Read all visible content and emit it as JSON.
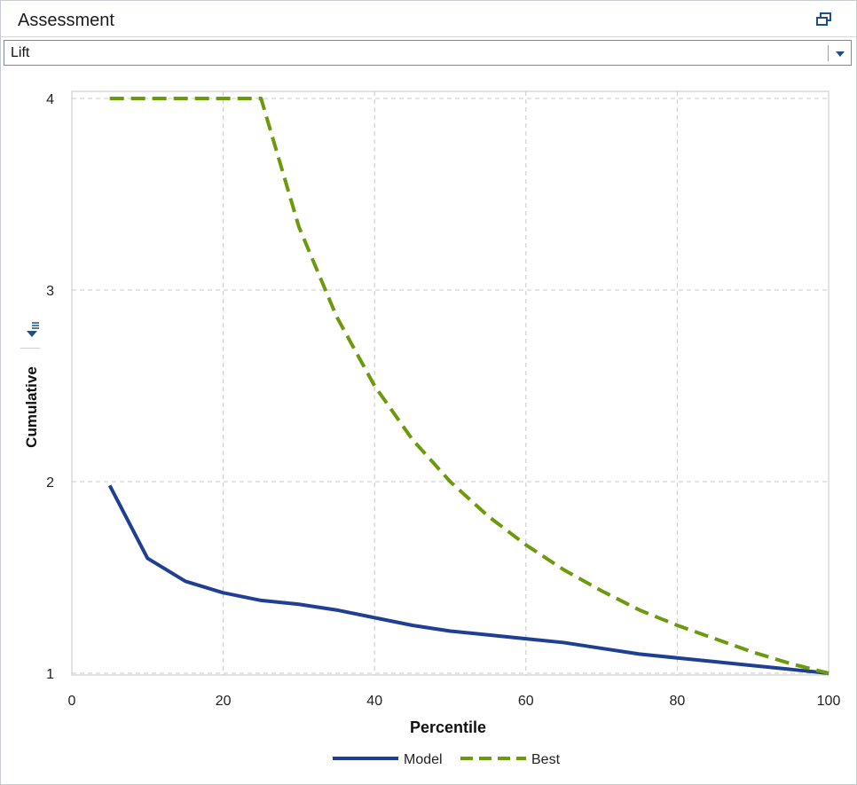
{
  "panel": {
    "title": "Assessment",
    "restore_icon": "restore-window-icon"
  },
  "dropdown": {
    "selected": "Lift",
    "arrow_icon": "chevron-down-icon"
  },
  "filter_icon": "filter-menu-icon",
  "colors": {
    "model": "#1f3f94",
    "best": "#6b9a0c",
    "grid": "#c8c8c8",
    "accent": "#1e4f8c"
  },
  "chart_data": {
    "type": "line",
    "xlabel": "Percentile",
    "ylabel": "Cumulative",
    "xlim": [
      0,
      100
    ],
    "ylim": [
      1,
      4
    ],
    "xticks": [
      0,
      20,
      40,
      60,
      80,
      100
    ],
    "yticks": [
      1,
      2,
      3,
      4
    ],
    "grid": true,
    "legend_position": "bottom-center",
    "series": [
      {
        "name": "Model",
        "style": "solid",
        "x": [
          5,
          10,
          15,
          20,
          25,
          30,
          35,
          40,
          45,
          50,
          55,
          60,
          65,
          70,
          75,
          80,
          85,
          90,
          95,
          100
        ],
        "y": [
          1.98,
          1.6,
          1.48,
          1.42,
          1.38,
          1.36,
          1.33,
          1.29,
          1.25,
          1.22,
          1.2,
          1.18,
          1.16,
          1.13,
          1.1,
          1.08,
          1.06,
          1.04,
          1.02,
          1.0
        ]
      },
      {
        "name": "Best",
        "style": "dashed",
        "x": [
          5,
          10,
          15,
          20,
          25,
          30,
          35,
          40,
          45,
          50,
          55,
          60,
          65,
          70,
          75,
          80,
          85,
          90,
          95,
          100
        ],
        "y": [
          4,
          4,
          4,
          4,
          4,
          3.33,
          2.86,
          2.5,
          2.22,
          2.0,
          1.82,
          1.67,
          1.54,
          1.43,
          1.33,
          1.25,
          1.18,
          1.11,
          1.05,
          1.0
        ]
      }
    ]
  }
}
